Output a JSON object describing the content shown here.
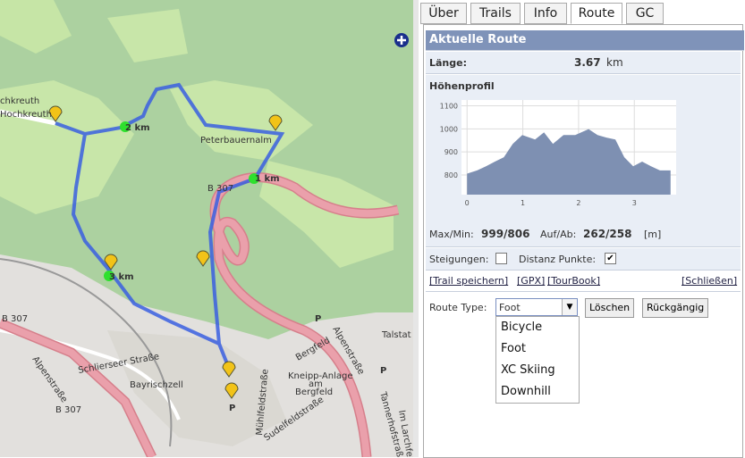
{
  "tabs": [
    {
      "label": "Über"
    },
    {
      "label": "Trails"
    },
    {
      "label": "Info"
    },
    {
      "label": "Route",
      "active": true
    },
    {
      "label": "GC"
    }
  ],
  "route_panel": {
    "title": "Aktuelle Route",
    "length_label": "Länge:",
    "length_value": "3.67",
    "length_unit": "km",
    "profile_title": "Höhenprofil",
    "maxmin_label": "Max/Min:",
    "maxmin_value": "999/806",
    "aufab_label": "Auf/Ab:",
    "aufab_value": "262/258",
    "unit": "[m]",
    "options": [
      {
        "label": "Steigungen:",
        "checked": false
      },
      {
        "label": "Distanz Punkte:",
        "checked": true
      }
    ],
    "links": [
      "[Trail speichern]",
      "[GPX]",
      "[TourBook]",
      "[Schließen]"
    ],
    "route_type_label": "Route Type:",
    "route_type_selected": "Foot",
    "buttons": [
      "Löschen",
      "Rückgängig"
    ],
    "route_type_options": [
      "Bicycle",
      "Foot",
      "XC Skiing",
      "Downhill"
    ]
  },
  "chart_data": {
    "type": "area",
    "x": [
      0,
      0.18,
      0.34,
      0.5,
      0.66,
      0.82,
      0.99,
      1.22,
      1.38,
      1.54,
      1.73,
      1.94,
      2.18,
      2.34,
      2.5,
      2.66,
      2.82,
      2.98,
      3.14,
      3.3,
      3.46,
      3.65
    ],
    "values": [
      806,
      820,
      838,
      858,
      877,
      935,
      973,
      954,
      985,
      935,
      973,
      973,
      999,
      973,
      962,
      954,
      877,
      838,
      858,
      838,
      820,
      820
    ],
    "xlim": [
      -0.1,
      3.75
    ],
    "ylim": [
      715,
      1125
    ],
    "xticks": [
      0,
      1,
      2,
      3
    ],
    "yticks": [
      800,
      900,
      1000,
      1100
    ],
    "color": "#7e90b2",
    "grid": true
  },
  "map": {
    "labels": [
      "chkreuth",
      "Hochkreuth",
      "2 km",
      "Peterbauernalm",
      "B 307",
      "1 km",
      "3 km",
      "B 307",
      "Alpenstraße",
      "Alpenstraße",
      "Bayrischzell",
      "Schlierseer Straße",
      "Kneipp-Anlage",
      "am",
      "Bergfeld",
      "Bergfeld",
      "Talstat",
      "Mühlfeldstraße",
      "Sudelfeldstraße",
      "Tannerhofstraße",
      "Im Larchfeld",
      "B 307",
      "P",
      "P",
      "P"
    ]
  }
}
